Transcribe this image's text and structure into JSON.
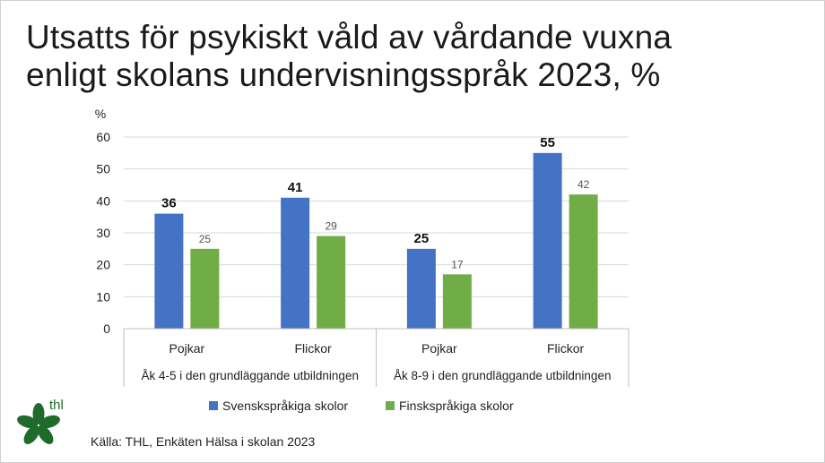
{
  "title": {
    "line1": "Utsatts för psykiskt våld av vårdande vuxna",
    "line2": "enligt skolans undervisningsspråk 2023, %"
  },
  "logo": {
    "text": "thl",
    "icon": "thl-leaf-logo",
    "color": "#1f6b2c"
  },
  "source": "Källa: THL, Enkäten Hälsa i skolan 2023",
  "chart_data": {
    "type": "bar",
    "ylabel": "%",
    "ylim": [
      0,
      60
    ],
    "yticks": [
      0,
      10,
      20,
      30,
      40,
      50,
      60
    ],
    "grid": true,
    "categories": [
      "Pojkar",
      "Flickor",
      "Pojkar",
      "Flickor"
    ],
    "groups": [
      {
        "label": "Åk 4-5 i den grundläggande utbildningen",
        "span": 2
      },
      {
        "label": "Åk 8-9 i den grundläggande utbildningen",
        "span": 2
      }
    ],
    "series": [
      {
        "name": "Svenskspråkiga skolor",
        "values": [
          36,
          41,
          25,
          55
        ],
        "color": "#4472c4"
      },
      {
        "name": "Finskspråkiga skolor",
        "values": [
          25,
          29,
          17,
          42
        ],
        "color": "#70ad47"
      }
    ],
    "legend": "bottom"
  }
}
